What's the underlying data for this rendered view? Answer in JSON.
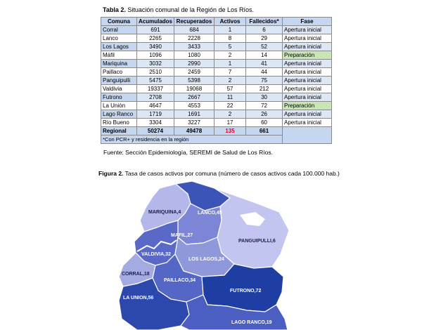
{
  "table": {
    "caption_label": "Tabla 2.",
    "caption_text": "Situación comunal de la Región de Los Ríos.",
    "headers": [
      "Comuna",
      "Acumulados",
      "Recuperados",
      "Activos",
      "Fallecidos*",
      "Fase"
    ],
    "rows": [
      {
        "comuna": "Corral",
        "acumulados": "691",
        "recuperados": "684",
        "activos": "1",
        "fallecidos": "6",
        "fase": "Apertura inicial"
      },
      {
        "comuna": "Lanco",
        "acumulados": "2265",
        "recuperados": "2228",
        "activos": "8",
        "fallecidos": "29",
        "fase": "Apertura inicial"
      },
      {
        "comuna": "Los Lagos",
        "acumulados": "3490",
        "recuperados": "3433",
        "activos": "5",
        "fallecidos": "52",
        "fase": "Apertura inicial"
      },
      {
        "comuna": "Máfil",
        "acumulados": "1096",
        "recuperados": "1080",
        "activos": "2",
        "fallecidos": "14",
        "fase": "Preparación"
      },
      {
        "comuna": "Mariquina",
        "acumulados": "3032",
        "recuperados": "2990",
        "activos": "1",
        "fallecidos": "41",
        "fase": "Apertura inicial"
      },
      {
        "comuna": "Paillaco",
        "acumulados": "2510",
        "recuperados": "2459",
        "activos": "7",
        "fallecidos": "44",
        "fase": "Apertura inicial"
      },
      {
        "comuna": "Panguipulli",
        "acumulados": "5475",
        "recuperados": "5398",
        "activos": "2",
        "fallecidos": "75",
        "fase": "Apertura inicial"
      },
      {
        "comuna": "Valdivia",
        "acumulados": "19337",
        "recuperados": "19068",
        "activos": "57",
        "fallecidos": "212",
        "fase": "Apertura inicial"
      },
      {
        "comuna": "Futrono",
        "acumulados": "2708",
        "recuperados": "2667",
        "activos": "11",
        "fallecidos": "30",
        "fase": "Apertura inicial"
      },
      {
        "comuna": "La Unión",
        "acumulados": "4647",
        "recuperados": "4553",
        "activos": "22",
        "fallecidos": "72",
        "fase": "Preparación"
      },
      {
        "comuna": "Lago Ranco",
        "acumulados": "1719",
        "recuperados": "1691",
        "activos": "2",
        "fallecidos": "26",
        "fase": "Apertura inicial"
      },
      {
        "comuna": "Río Bueno",
        "acumulados": "3304",
        "recuperados": "3227",
        "activos": "17",
        "fallecidos": "60",
        "fase": "Apertura inicial"
      }
    ],
    "total": {
      "comuna": "Regional",
      "acumulados": "50274",
      "recuperados": "49478",
      "activos": "135",
      "fallecidos": "661"
    },
    "note": "*Con PCR+ y residencia en la región",
    "colors": {
      "header_bg": "#c5d6f0",
      "band_bg": "#dce6f4",
      "preparacion_bg": "#c8e5b5",
      "total_activos": "#d8002a"
    }
  },
  "source": "Fuente: Sección Epidemiología, SEREMI de Salud de Los Ríos.",
  "figure": {
    "caption_label": "Figura 2.",
    "caption_text": "Tasa de casos activos por comuna (número de casos activos cada 100.000 hab.)",
    "regions": [
      {
        "key": "mariquina",
        "label": "MARIQUINA,4",
        "rate": 4,
        "color": "#b3b7ea"
      },
      {
        "key": "lanco",
        "label": "LANCO,45",
        "rate": 45,
        "color": "#3c53b8"
      },
      {
        "key": "panguipulli",
        "label": "PANGUIPULLI,6",
        "rate": 6,
        "color": "#c2c5ef"
      },
      {
        "key": "mafil",
        "label": "MAFIL,27",
        "rate": 27,
        "color": "#7d86d6"
      },
      {
        "key": "valdivia",
        "label": "VALDIVIA,32",
        "rate": 32,
        "color": "#5a69c8"
      },
      {
        "key": "los_lagos",
        "label": "LOS LAGOS,24",
        "rate": 24,
        "color": "#8f98db"
      },
      {
        "key": "corral",
        "label": "CORRAL,18",
        "rate": 18,
        "color": "#a4abe2"
      },
      {
        "key": "paillaco",
        "label": "PAILLACO,34",
        "rate": 34,
        "color": "#5567c6"
      },
      {
        "key": "futrono",
        "label": "FUTRONO,72",
        "rate": 72,
        "color": "#1f3ea3"
      },
      {
        "key": "la_union",
        "label": "LA UNION,56",
        "rate": 56,
        "color": "#2c48ad"
      },
      {
        "key": "lago_ranco",
        "label": "LAGO RANCO,19",
        "rate": 19,
        "color": "#4a5fc1"
      }
    ],
    "water_color": "#ffffff"
  }
}
